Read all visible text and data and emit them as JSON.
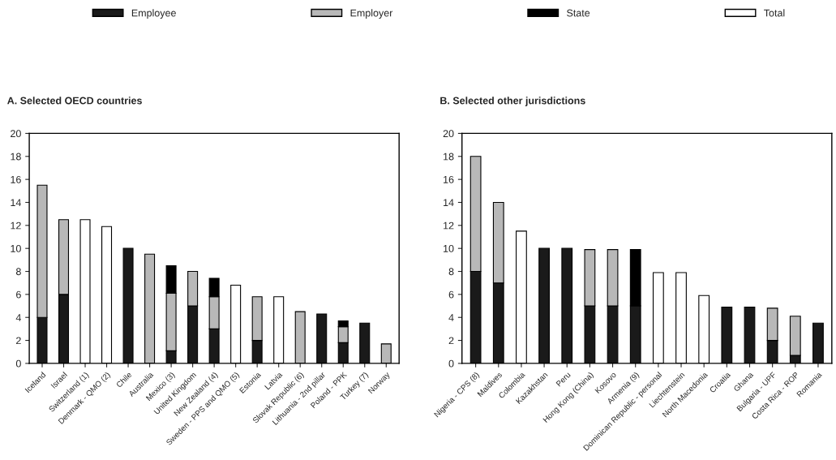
{
  "chart_data": [
    {
      "type": "bar",
      "title": "A. Selected OECD countries",
      "stacked": true,
      "legend": "top",
      "grid": false,
      "categories": [
        "Iceland",
        "Israel",
        "Switzerland (1)",
        "Denmark - QMO (2)",
        "Chile",
        "Australia",
        "Mexico (3)",
        "United Kingdom",
        "New Zealand (4)",
        "Sweden - PPS and QMO (5)",
        "Estonia",
        "Latvia",
        "Slovak Republic (6)",
        "Lithuania - 2nd pillar",
        "Poland - PPK",
        "Turkey (7)",
        "Norway"
      ],
      "series": [
        {
          "name": "Employee",
          "color": "#1a1a1a",
          "values": [
            4,
            6,
            null,
            null,
            10,
            null,
            1.1,
            5,
            3,
            null,
            2,
            null,
            null,
            4.3,
            1.8,
            3.5,
            null
          ]
        },
        {
          "name": "Employer",
          "color": "#b8b8b8",
          "values": [
            11.5,
            6.5,
            null,
            null,
            null,
            9.5,
            5,
            3,
            2.8,
            null,
            3.8,
            null,
            4.5,
            null,
            1.4,
            null,
            1.7
          ]
        },
        {
          "name": "State",
          "color": "#000000",
          "values": [
            null,
            null,
            null,
            null,
            null,
            null,
            2.4,
            null,
            1.6,
            null,
            null,
            null,
            null,
            null,
            0.5,
            null,
            null
          ]
        },
        {
          "name": "Total",
          "color": "#ffffff",
          "values": [
            null,
            null,
            12.5,
            11.9,
            null,
            null,
            null,
            null,
            null,
            6.8,
            null,
            5.8,
            null,
            null,
            null,
            null,
            null
          ]
        }
      ],
      "ylim": [
        0,
        20
      ],
      "yticks": [
        0,
        2,
        4,
        6,
        8,
        10,
        12,
        14,
        16,
        18,
        20
      ]
    },
    {
      "type": "bar",
      "title": "B. Selected other jurisdictions",
      "stacked": true,
      "grid": false,
      "categories": [
        "Nigeria - CPS (8)",
        "Maldives",
        "Colombia",
        "Kazakhstan",
        "Peru",
        "Hong Kong (China)",
        "Kosovo",
        "Armenia (9)",
        "Dominican Republic - personal",
        "Liechtenstein",
        "North Macedonia",
        "Croatia",
        "Ghana",
        "Bulgaria - UPF",
        "Costa Rica - ROP",
        "Romania"
      ],
      "series": [
        {
          "color": "#1a1a1a",
          "values": [
            8,
            7,
            null,
            10,
            10,
            5,
            5,
            5,
            null,
            null,
            null,
            4.9,
            4.9,
            2,
            0.7,
            3.5
          ]
        },
        {
          "color": "#b8b8b8",
          "values": [
            10,
            7,
            null,
            null,
            null,
            4.9,
            4.9,
            null,
            null,
            null,
            null,
            null,
            null,
            2.8,
            3.4,
            null
          ]
        },
        {
          "color": "#000000",
          "values": [
            null,
            null,
            null,
            null,
            null,
            null,
            null,
            4.9,
            null,
            null,
            null,
            null,
            null,
            null,
            null,
            null
          ]
        },
        {
          "color": "#ffffff",
          "values": [
            null,
            null,
            11.5,
            null,
            null,
            null,
            null,
            null,
            7.9,
            7.9,
            5.9,
            null,
            null,
            null,
            null,
            null
          ]
        }
      ],
      "ylim": [
        0,
        20
      ],
      "yticks": [
        0,
        2,
        4,
        6,
        8,
        10,
        12,
        14,
        16,
        18,
        20
      ]
    }
  ]
}
